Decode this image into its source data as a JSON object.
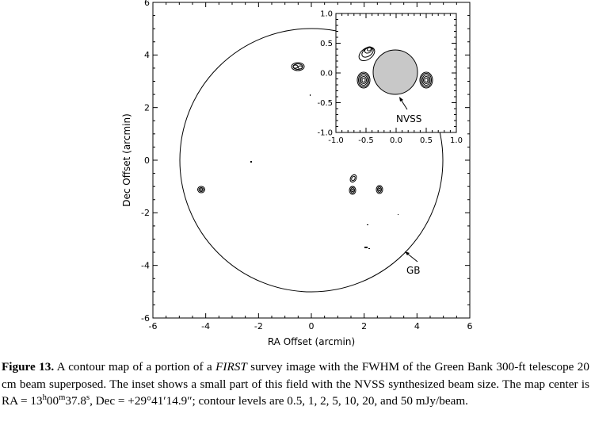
{
  "main_plot": {
    "xlabel": "RA Offset (arcmin)",
    "ylabel": "Dec Offset (arcmin)",
    "xlim": [
      -6,
      6
    ],
    "ylim": [
      -6,
      6
    ],
    "xticks": [
      "-6",
      "-4",
      "-2",
      "0",
      "2",
      "4",
      "6"
    ],
    "yticks": [
      "-6",
      "-4",
      "-2",
      "0",
      "2",
      "4",
      "6"
    ],
    "beam_label": "GB",
    "beam_radius_arcmin": 5.0
  },
  "inset_plot": {
    "xlim": [
      -1.0,
      1.0
    ],
    "ylim": [
      -1.0,
      1.0
    ],
    "xticks": [
      "-1.0",
      "-0.5",
      "0.0",
      "0.5",
      "1.0"
    ],
    "yticks": [
      "-1.0",
      "-0.5",
      "0.0",
      "0.5",
      "1.0"
    ],
    "beam_label": "NVSS",
    "beam_radius_arcmin": 0.375
  },
  "caption": {
    "label": "Figure 13.",
    "t1": " A contour map of a portion of a ",
    "t2": "FIRST",
    "t3": " survey image with the FWHM of the Green Bank 300-ft telescope 20 cm beam superposed. The inset shows a small part of this field with the NVSS synthesized beam size. The map center is RA = 13",
    "h": "h",
    "t4": "00",
    "m": "m",
    "t5": "37.8",
    "s": "s",
    "t6": ", Dec = +29°41′14.9″; contour levels are 0.5, 1, 2, 5, 10, 20, and 50 mJy/beam."
  }
}
